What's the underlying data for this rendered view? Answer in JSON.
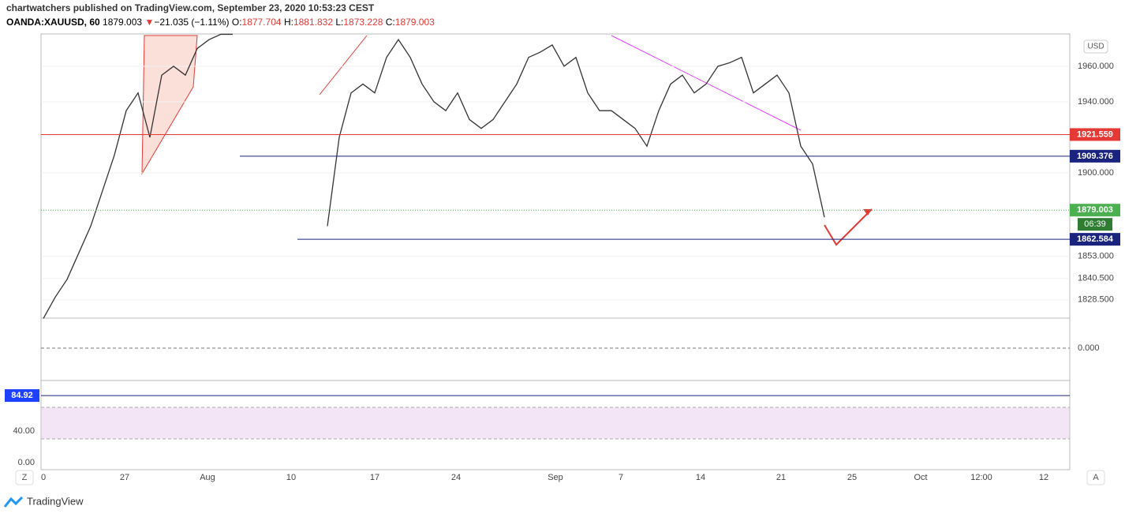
{
  "header": {
    "published": "chartwatchers published on TradingView.com, September 23, 2020 10:53:23 CEST",
    "last": "1879.003",
    "arrow": "▼",
    "change": "−21.035 (−1.11%)",
    "o_label": "O:",
    "o": "1877.704",
    "h_label": "H:",
    "h": "1881.832",
    "l_label": "L:",
    "l": "1873.228",
    "c_label": "C:",
    "c": "1879.003"
  },
  "chart_data": {
    "type": "line",
    "series": [
      {
        "name": "OANDA:XAUUSD, 60",
        "color": "#333333",
        "values": [
          1818,
          1830,
          1840,
          1855,
          1870,
          1890,
          1910,
          1935,
          1945,
          1920,
          1955,
          1960,
          1955,
          1970,
          1975,
          1978,
          1978,
          null,
          null,
          null,
          null,
          null,
          null,
          null,
          1870,
          1920,
          1945,
          1950,
          1945,
          1965,
          1975,
          1965,
          1950,
          1940,
          1935,
          1945,
          1930,
          1925,
          1930,
          1940,
          1950,
          1965,
          1968,
          1972,
          1960,
          1965,
          1945,
          1935,
          1935,
          1930,
          1925,
          1915,
          1935,
          1950,
          1955,
          1945,
          1950,
          1960,
          1962,
          1965,
          1945,
          1950,
          1955,
          1945,
          1915,
          1905,
          1875
        ]
      }
    ],
    "currency": "USD",
    "ylim": [
      1818.2,
      1978.2
    ],
    "yticks": [
      {
        "value": 1960,
        "label": "1960.000"
      },
      {
        "value": 1940,
        "label": "1940.000"
      },
      {
        "value": 1900,
        "label": "1900.000"
      },
      {
        "value": 1853,
        "label": "1853.000"
      },
      {
        "value": 1840.5,
        "label": "1840.500"
      },
      {
        "value": 1828.5,
        "label": "1828.500"
      }
    ],
    "price_lines": [
      {
        "value": 1921.559,
        "color": "#e53935"
      },
      {
        "value": 1909.376,
        "color": "#1a237e"
      },
      {
        "value": 1879.003,
        "color": "#4caf50"
      },
      {
        "value": 1862.584,
        "color": "#1a237e"
      }
    ],
    "countdown": "06:39",
    "x_labels": [
      "0",
      "27",
      "Aug",
      "10",
      "17",
      "24",
      "Sep",
      "7",
      "14",
      "21",
      "25",
      "Oct",
      "12:00",
      "12"
    ]
  },
  "macd": {
    "yticks": [
      {
        "value": 0,
        "label": "0.000"
      }
    ]
  },
  "rsi": {
    "ylim": [
      -9,
      101
    ],
    "yticks": [
      {
        "value": 40,
        "label": "40.00"
      },
      {
        "value": 0,
        "label": "0.00"
      }
    ],
    "level": 84.92,
    "band": [
      70,
      30
    ]
  },
  "footer": {
    "brand": "TradingView",
    "left_button": "Z",
    "right_button": "A"
  }
}
